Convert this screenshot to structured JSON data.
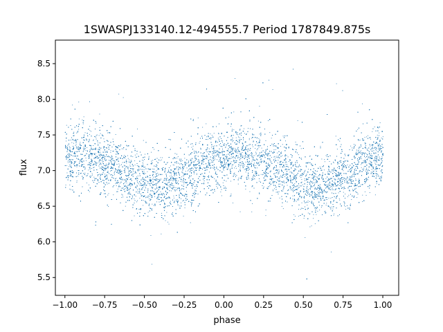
{
  "chart_data": {
    "type": "scatter",
    "title": "1SWASPJ133140.12-494555.7 Period 1787849.875s",
    "xlabel": "phase",
    "ylabel": "flux",
    "xlim": [
      -1.06,
      1.1
    ],
    "ylim": [
      5.25,
      8.83
    ],
    "x_ticks": [
      -1.0,
      -0.75,
      -0.5,
      -0.25,
      0.0,
      0.25,
      0.5,
      0.75,
      1.0
    ],
    "x_tick_labels": [
      "−1.00",
      "−0.75",
      "−0.50",
      "−0.25",
      "0.00",
      "0.25",
      "0.50",
      "0.75",
      "1.00"
    ],
    "y_ticks": [
      5.5,
      6.0,
      6.5,
      7.0,
      7.5,
      8.0,
      8.5
    ],
    "y_tick_labels": [
      "5.5",
      "6.0",
      "6.5",
      "7.0",
      "7.5",
      "8.0",
      "8.5"
    ],
    "grid": false,
    "legend": "none",
    "marker_color": "#1f77b4",
    "series": [
      {
        "curve": {
          "x": [
            -1.0,
            -0.9,
            -0.8,
            -0.7,
            -0.6,
            -0.5,
            -0.4,
            -0.3,
            -0.2,
            -0.1,
            0.0,
            0.1,
            0.2,
            0.3,
            0.4,
            0.5,
            0.6,
            0.7,
            0.8,
            0.9,
            1.0
          ],
          "y": [
            7.2,
            7.22,
            7.15,
            7.08,
            6.95,
            6.82,
            6.78,
            6.85,
            6.98,
            7.12,
            7.2,
            7.22,
            7.15,
            7.08,
            6.95,
            6.82,
            6.78,
            6.85,
            6.98,
            7.12,
            7.2
          ]
        },
        "scatter_sd": 0.22,
        "point_count": 14000,
        "phase_range": [
          -1.0,
          1.0
        ]
      }
    ]
  }
}
